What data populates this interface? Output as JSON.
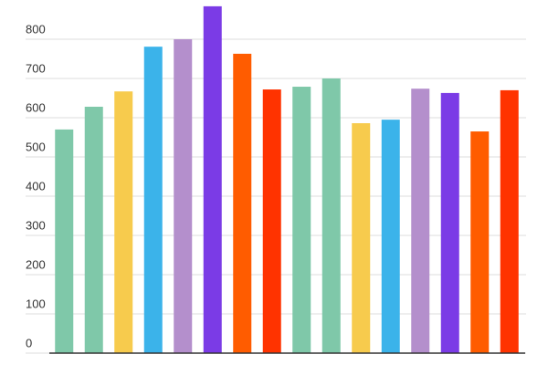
{
  "chart_data": {
    "type": "bar",
    "categories": [
      null,
      null,
      null,
      null,
      null,
      null,
      null,
      null,
      null,
      null,
      null,
      null,
      null,
      null,
      null,
      null
    ],
    "values": [
      570,
      628,
      667,
      781,
      800,
      884,
      763,
      672,
      679,
      700,
      586,
      595,
      674,
      663,
      565,
      670
    ],
    "colors": [
      "#7fc8a9",
      "#7fc8a9",
      "#f7cb4d",
      "#3bb3ea",
      "#b48fcc",
      "#7b3be6",
      "#ff5c00",
      "#ff3300",
      "#7fc8a9",
      "#7fc8a9",
      "#f7cb4d",
      "#3bb3ea",
      "#b48fcc",
      "#7b3be6",
      "#ff5c00",
      "#ff3300"
    ],
    "ylim": [
      0,
      900
    ],
    "yticks": [
      0,
      100,
      200,
      300,
      400,
      500,
      600,
      700,
      800
    ],
    "grid": true
  }
}
